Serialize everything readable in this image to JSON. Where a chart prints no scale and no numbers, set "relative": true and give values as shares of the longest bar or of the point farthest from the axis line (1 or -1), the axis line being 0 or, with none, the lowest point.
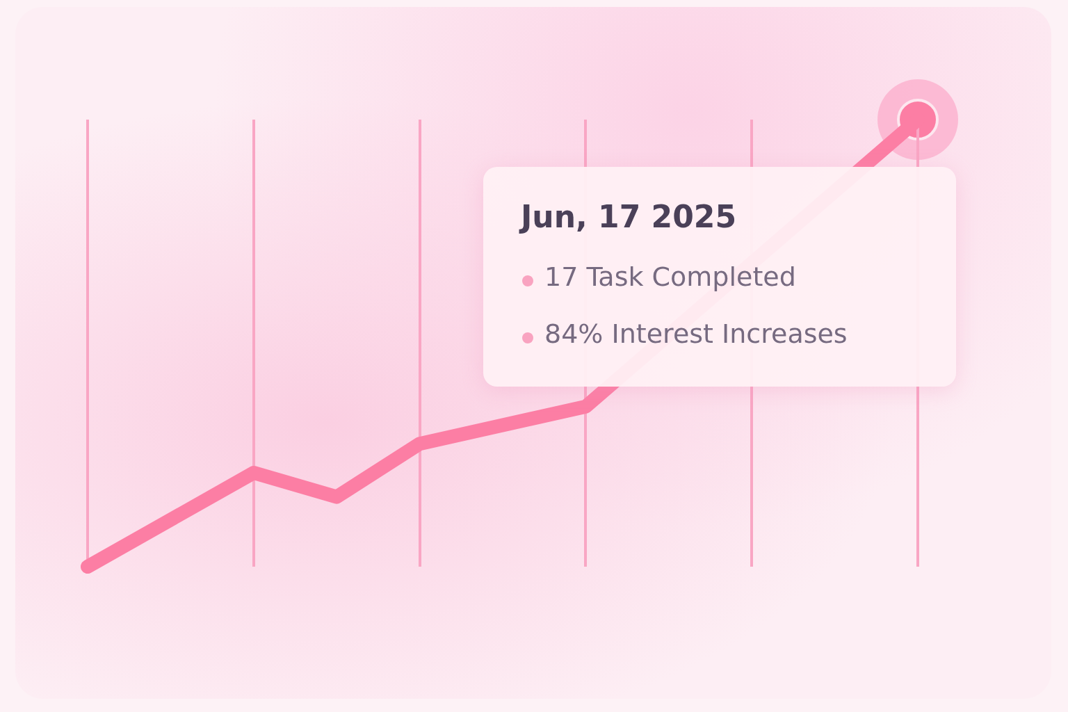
{
  "chart_data": {
    "type": "line",
    "relative": true,
    "categories": [
      null,
      null,
      null,
      null,
      null,
      null,
      null,
      null,
      null,
      null,
      null
    ],
    "grid": "x",
    "tick_labels": false,
    "legend": false,
    "line_style": "solid",
    "marker": "none",
    "series": [
      {
        "color": "#fc7ea4",
        "values": [
          0,
          null,
          0.21,
          0.156,
          0.275,
          null,
          0.358,
          null,
          null,
          null,
          1
        ]
      }
    ],
    "annotations": [
      "Jun, 17 2025",
      "17 Task Completed",
      "84% Interest Increases"
    ]
  }
}
